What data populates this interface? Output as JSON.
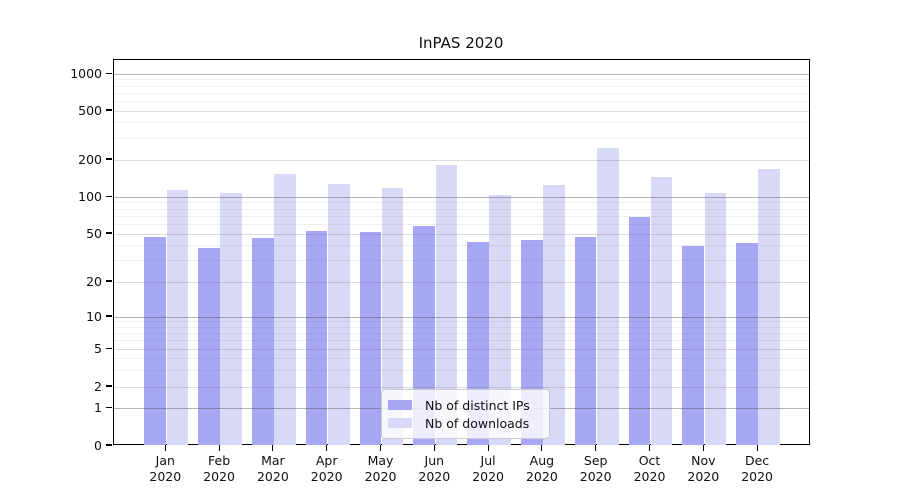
{
  "title": "InPAS 2020",
  "chart_data": {
    "type": "bar",
    "title": "InPAS 2020",
    "categories": [
      "Jan 2020",
      "Feb 2020",
      "Mar 2020",
      "Apr 2020",
      "May 2020",
      "Jun 2020",
      "Jul 2020",
      "Aug 2020",
      "Sep 2020",
      "Oct 2020",
      "Nov 2020",
      "Dec 2020"
    ],
    "series": [
      {
        "name": "Nb of distinct IPs",
        "color": "#a7a7f4",
        "values": [
          47,
          38,
          46,
          53,
          52,
          58,
          43,
          45,
          47,
          69,
          40,
          42
        ]
      },
      {
        "name": "Nb of downloads",
        "color": "#d8d8f7",
        "values": [
          115,
          108,
          155,
          127,
          119,
          181,
          104,
          126,
          250,
          147,
          108,
          168
        ]
      }
    ],
    "ylabel": "",
    "xlabel": "",
    "yscale": "symlog",
    "ylim": [
      0,
      1300
    ],
    "yticks": [
      0,
      1,
      2,
      5,
      10,
      20,
      50,
      100,
      200,
      500,
      1000
    ],
    "grid": true,
    "legend": {
      "position": "lower center",
      "labels": [
        "Nb of distinct IPs",
        "Nb of downloads"
      ]
    }
  },
  "colors": {
    "grid_major": "rgba(70,70,70,0.40)",
    "grid_mid": "rgba(100,100,100,0.22)",
    "grid_minor": "rgba(100,100,100,0.10)",
    "spine": "#000000",
    "text": "#111111"
  }
}
